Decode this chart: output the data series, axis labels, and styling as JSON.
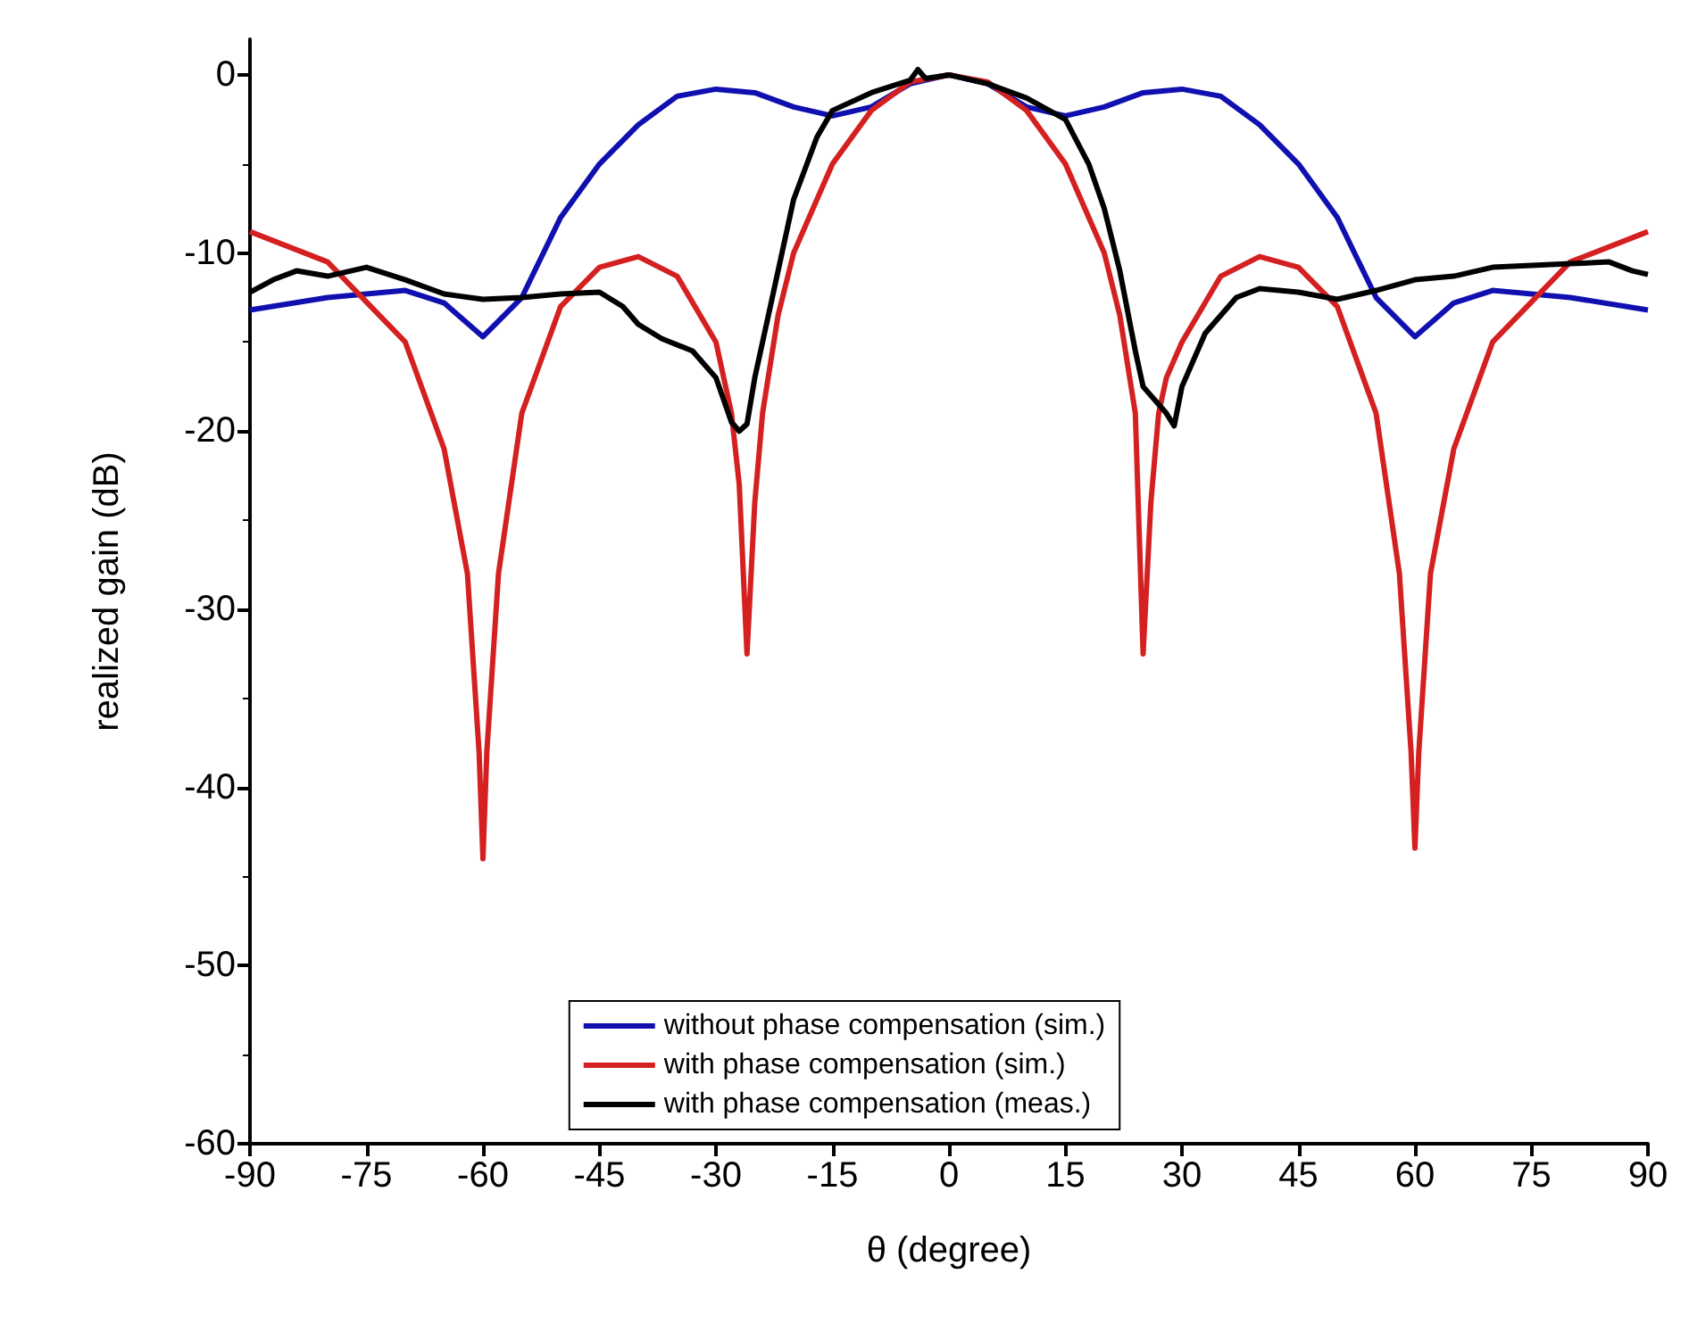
{
  "chart_data": {
    "type": "line",
    "xlabel": "θ (degree)",
    "ylabel": "realized gain (dB)",
    "xlim": [
      -90,
      90
    ],
    "xticks": [
      -90,
      -75,
      -60,
      -45,
      -30,
      -15,
      0,
      15,
      30,
      45,
      60,
      75,
      90
    ],
    "ylim": [
      -60,
      2
    ],
    "yticks": [
      -60,
      -50,
      -40,
      -30,
      -20,
      -10,
      0
    ],
    "grid": false,
    "legend": "bottom",
    "marker": "none",
    "line_style": "solid",
    "series": [
      {
        "name": "without phase compensation (sim.)",
        "color": "#1010b0",
        "x": [
          -90,
          -80,
          -70,
          -65,
          -60,
          -55,
          -50,
          -45,
          -40,
          -35,
          -30,
          -25,
          -20,
          -15,
          -10,
          -5,
          0,
          5,
          10,
          15,
          20,
          25,
          30,
          35,
          40,
          45,
          50,
          55,
          60,
          65,
          70,
          80,
          90
        ],
        "values": [
          -13.2,
          -12.5,
          -12.1,
          -12.8,
          -14.7,
          -12.5,
          -8,
          -5,
          -2.8,
          -1.2,
          -0.8,
          -1.0,
          -1.8,
          -2.3,
          -1.8,
          -0.5,
          0,
          -0.5,
          -1.8,
          -2.3,
          -1.8,
          -1.0,
          -0.8,
          -1.2,
          -2.8,
          -5,
          -8,
          -12.5,
          -14.7,
          -12.8,
          -12.1,
          -12.5,
          -13.2
        ]
      },
      {
        "name": "with phase compensation (sim.)",
        "color": "#d42020",
        "x": [
          -90,
          -80,
          -70,
          -65,
          -62,
          -60.5,
          -60,
          -59.5,
          -58,
          -55,
          -50,
          -45,
          -40,
          -35,
          -30,
          -28,
          -27,
          -26,
          -25,
          -24,
          -22,
          -20,
          -15,
          -10,
          -5,
          0,
          5,
          10,
          15,
          20,
          22,
          24,
          25,
          26,
          27,
          28,
          30,
          35,
          40,
          45,
          50,
          55,
          58,
          59.5,
          60,
          60.5,
          62,
          65,
          70,
          80,
          90
        ],
        "values": [
          -8.8,
          -10.5,
          -15,
          -21,
          -28,
          -38,
          -44,
          -38,
          -28,
          -19,
          -13,
          -10.8,
          -10.2,
          -11.3,
          -15,
          -19,
          -23,
          -32.5,
          -24,
          -19,
          -13.5,
          -10,
          -5,
          -2,
          -0.4,
          0,
          -0.4,
          -2,
          -5,
          -10,
          -13.5,
          -19,
          -32.5,
          -24,
          -19,
          -17,
          -15,
          -11.3,
          -10.2,
          -10.8,
          -13,
          -19,
          -28,
          -38,
          -43.4,
          -38,
          -28,
          -21,
          -15,
          -10.5,
          -8.8
        ]
      },
      {
        "name": "with phase compensation (meas.)",
        "color": "#000000",
        "x": [
          -90,
          -87,
          -84,
          -80,
          -75,
          -70,
          -65,
          -60,
          -55,
          -50,
          -45,
          -42,
          -40,
          -37,
          -33,
          -30,
          -28,
          -27,
          -26,
          -25,
          -23,
          -20,
          -17,
          -15,
          -10,
          -5,
          -4,
          -3,
          0,
          5,
          10,
          15,
          18,
          20,
          22,
          24,
          25,
          27,
          28,
          29,
          30,
          33,
          37,
          40,
          45,
          50,
          55,
          60,
          65,
          70,
          75,
          80,
          85,
          88,
          90
        ],
        "values": [
          -12.2,
          -11.5,
          -11,
          -11.3,
          -10.8,
          -11.5,
          -12.3,
          -12.6,
          -12.5,
          -12.3,
          -12.2,
          -13,
          -14,
          -14.8,
          -15.5,
          -17,
          -19.5,
          -20,
          -19.6,
          -17,
          -13,
          -7,
          -3.5,
          -2,
          -1,
          -0.3,
          0.3,
          -0.2,
          0,
          -0.5,
          -1.3,
          -2.5,
          -5,
          -7.5,
          -11,
          -15.5,
          -17.5,
          -18.5,
          -19,
          -19.7,
          -17.5,
          -14.5,
          -12.5,
          -12,
          -12.2,
          -12.6,
          -12.1,
          -11.5,
          -11.3,
          -10.8,
          -10.7,
          -10.6,
          -10.5,
          -11,
          -11.2
        ]
      }
    ]
  }
}
